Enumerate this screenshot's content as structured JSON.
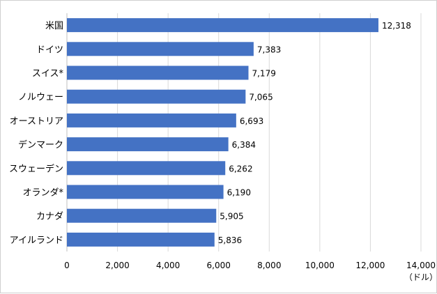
{
  "colors": {
    "bar": "#4472C4",
    "grid": "#d9d9d9",
    "axis": "#bfbfbf"
  },
  "chart_data": {
    "type": "bar",
    "orientation": "horizontal",
    "categories": [
      "米国",
      "ドイツ",
      "スイス*",
      "ノルウェー",
      "オーストリア",
      "デンマーク",
      "スウェーデン",
      "オランダ*",
      "カナダ",
      "アイルランド"
    ],
    "values": [
      12318,
      7383,
      7179,
      7065,
      6693,
      6384,
      6262,
      6190,
      5905,
      5836
    ],
    "value_labels": [
      "12,318",
      "7,383",
      "7,179",
      "7,065",
      "6,693",
      "6,384",
      "6,262",
      "6,190",
      "5,905",
      "5,836"
    ],
    "title": "",
    "xlabel": "（ドル）",
    "ylabel": "",
    "xlim": [
      0,
      14000
    ],
    "xticks": [
      0,
      2000,
      4000,
      6000,
      8000,
      10000,
      12000,
      14000
    ],
    "xtick_labels": [
      "0",
      "2,000",
      "4,000",
      "6,000",
      "8,000",
      "10,000",
      "12,000",
      "14,000"
    ],
    "grid": true,
    "legend": "none"
  }
}
